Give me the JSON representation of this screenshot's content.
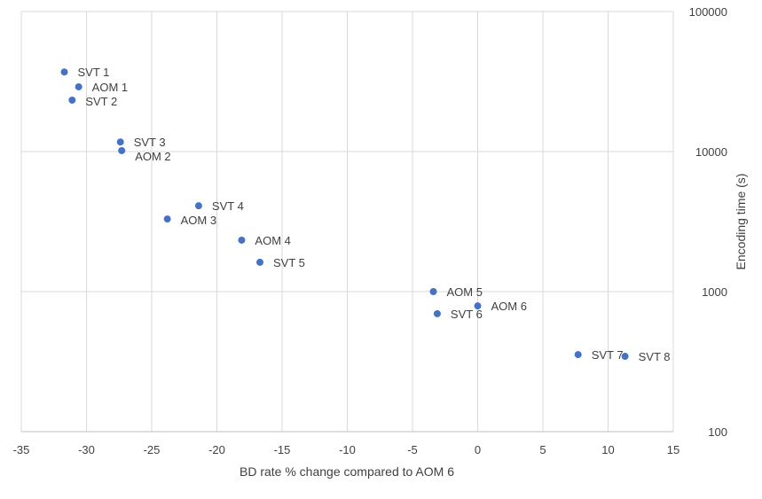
{
  "chart_data": {
    "type": "scatter",
    "title": "",
    "xlabel": "BD rate % change compared to AOM 6",
    "ylabel": "Encoding time (s)",
    "xlim": [
      -35,
      15
    ],
    "ylim": [
      100,
      100000
    ],
    "y_scale": "log",
    "y_axis_position": "right",
    "grid": true,
    "legend": "none",
    "x_ticks": [
      "-35",
      "-30",
      "-25",
      "-20",
      "-15",
      "-10",
      "-5",
      "0",
      "5",
      "10",
      "15"
    ],
    "y_ticks": [
      "100",
      "1000",
      "10000",
      "100000"
    ],
    "marker_color": "#4472C4",
    "points": [
      {
        "label": "SVT 1",
        "x": -31.7,
        "y": 37000
      },
      {
        "label": "AOM 1",
        "x": -30.6,
        "y": 29000
      },
      {
        "label": "SVT 2",
        "x": -31.1,
        "y": 23300
      },
      {
        "label": "SVT 3",
        "x": -27.4,
        "y": 11700
      },
      {
        "label": "AOM 2",
        "x": -27.3,
        "y": 10150
      },
      {
        "label": "SVT 4",
        "x": -21.4,
        "y": 4100
      },
      {
        "label": "AOM 3",
        "x": -23.8,
        "y": 3300
      },
      {
        "label": "AOM 4",
        "x": -18.1,
        "y": 2330
      },
      {
        "label": "SVT 5",
        "x": -16.7,
        "y": 1620
      },
      {
        "label": "AOM 5",
        "x": -3.4,
        "y": 1000
      },
      {
        "label": "AOM 6",
        "x": 0,
        "y": 790
      },
      {
        "label": "SVT 6",
        "x": -3.1,
        "y": 695
      },
      {
        "label": "SVT 7",
        "x": 7.7,
        "y": 355
      },
      {
        "label": "SVT 8",
        "x": 11.3,
        "y": 345
      }
    ]
  }
}
